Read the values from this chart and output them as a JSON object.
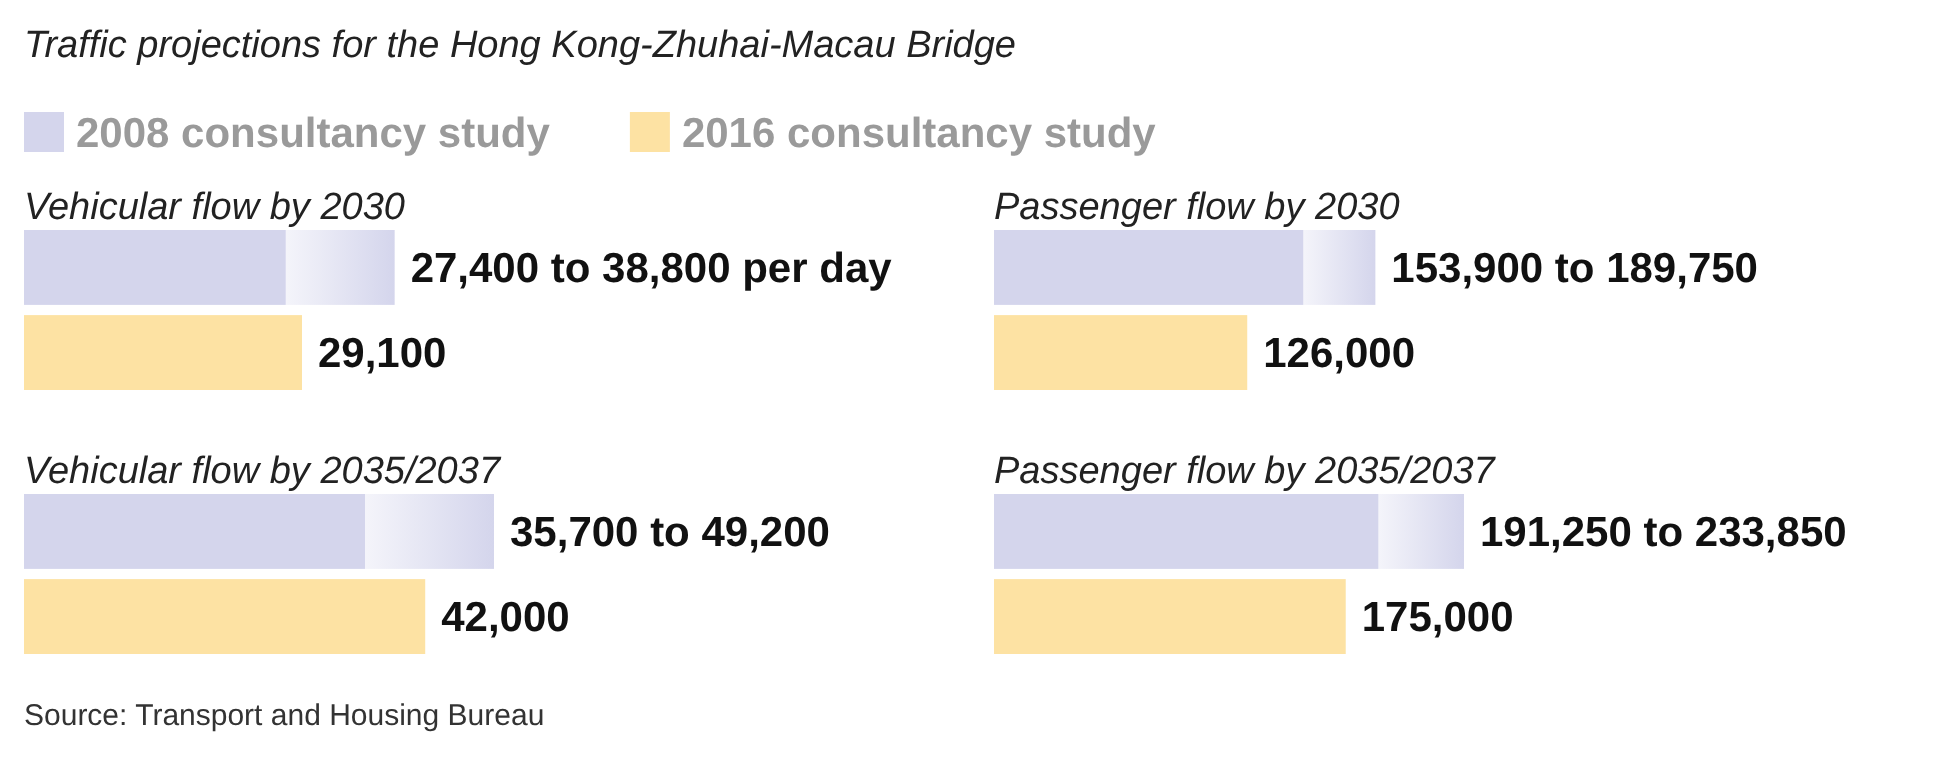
{
  "chart_data": [
    {
      "type": "bar",
      "orientation": "horizontal",
      "stacked": true,
      "title": "Vehicular flow by 2030",
      "annotations": [
        "Traffic projections for the Hong Kong-Zhuhai-Macau Bridge",
        {
          "text": "27,400 to 38,800 per day",
          "x": 38800
        }
      ],
      "legend": "top",
      "tick_labels": false,
      "categories": [
        null,
        null
      ],
      "series": [
        {
          "name": "2008 consultancy study",
          "color": "#d4d5ec",
          "values": [
            27400,
            null
          ]
        },
        {
          "color": "#d4d5ec",
          "values": [
            11400,
            null
          ]
        },
        {
          "name": "2016 consultancy study",
          "color": "#fde2a3",
          "values": [
            null,
            29100
          ],
          "value_labels": [
            null,
            "29,100"
          ]
        }
      ]
    },
    {
      "type": "bar",
      "orientation": "horizontal",
      "stacked": true,
      "title": "Passenger flow by 2030",
      "annotations": [
        {
          "text": "153,900 to 189,750",
          "x": 189750
        }
      ],
      "tick_labels": false,
      "categories": [
        null,
        null
      ],
      "series": [
        {
          "color": "#d4d5ec",
          "values": [
            153900,
            null
          ]
        },
        {
          "color": "#d4d5ec",
          "values": [
            35850,
            null
          ]
        },
        {
          "color": "#fde2a3",
          "values": [
            null,
            126000
          ],
          "value_labels": [
            null,
            "126,000"
          ]
        }
      ]
    },
    {
      "type": "bar",
      "orientation": "horizontal",
      "stacked": true,
      "title": "Vehicular flow by 2035/2037",
      "annotations": [
        "Source: Transport and Housing Bureau",
        {
          "text": "35,700 to 49,200",
          "x": 49200
        }
      ],
      "tick_labels": false,
      "categories": [
        null,
        null
      ],
      "series": [
        {
          "color": "#d4d5ec",
          "values": [
            35700,
            null
          ]
        },
        {
          "color": "#d4d5ec",
          "values": [
            13500,
            null
          ]
        },
        {
          "color": "#fde2a3",
          "values": [
            null,
            42000
          ],
          "value_labels": [
            null,
            "42,000"
          ]
        }
      ]
    },
    {
      "type": "bar",
      "orientation": "horizontal",
      "stacked": true,
      "title": "Passenger flow by 2035/2037",
      "annotations": [
        {
          "text": "191,250 to 233,850",
          "x": 233850
        }
      ],
      "tick_labels": false,
      "categories": [
        null,
        null
      ],
      "series": [
        {
          "color": "#d4d5ec",
          "values": [
            191250,
            null
          ]
        },
        {
          "color": "#d4d5ec",
          "values": [
            42600,
            null
          ]
        },
        {
          "color": "#fde2a3",
          "values": [
            null,
            175000
          ],
          "value_labels": [
            null,
            "175,000"
          ]
        }
      ]
    }
  ]
}
